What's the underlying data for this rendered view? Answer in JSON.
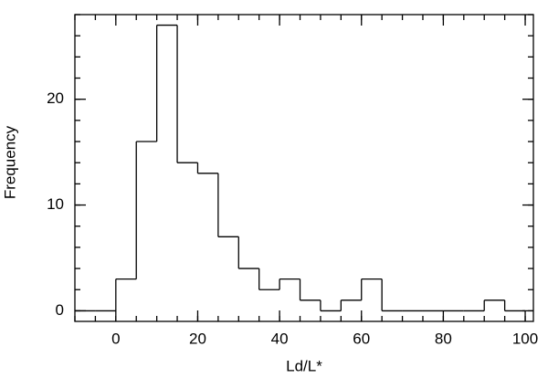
{
  "chart_data": {
    "type": "histogram",
    "xlabel": "Ld/L*",
    "ylabel": "Frequency",
    "bins": [
      -10,
      -5,
      0,
      5,
      10,
      15,
      20,
      25,
      30,
      35,
      40,
      45,
      50,
      55,
      60,
      65,
      70,
      75,
      80,
      85,
      90,
      95,
      100
    ],
    "values": [
      0,
      0,
      3,
      16,
      27,
      14,
      13,
      7,
      4,
      2,
      3,
      1,
      0,
      1,
      3,
      0,
      0,
      0,
      0,
      0,
      1,
      0
    ],
    "color": "#000000",
    "xlim": [
      -10,
      102
    ],
    "ylim": [
      -1,
      28
    ],
    "xticks": [
      0,
      20,
      40,
      60,
      80,
      100
    ],
    "yticks": [
      0,
      10,
      20
    ]
  }
}
